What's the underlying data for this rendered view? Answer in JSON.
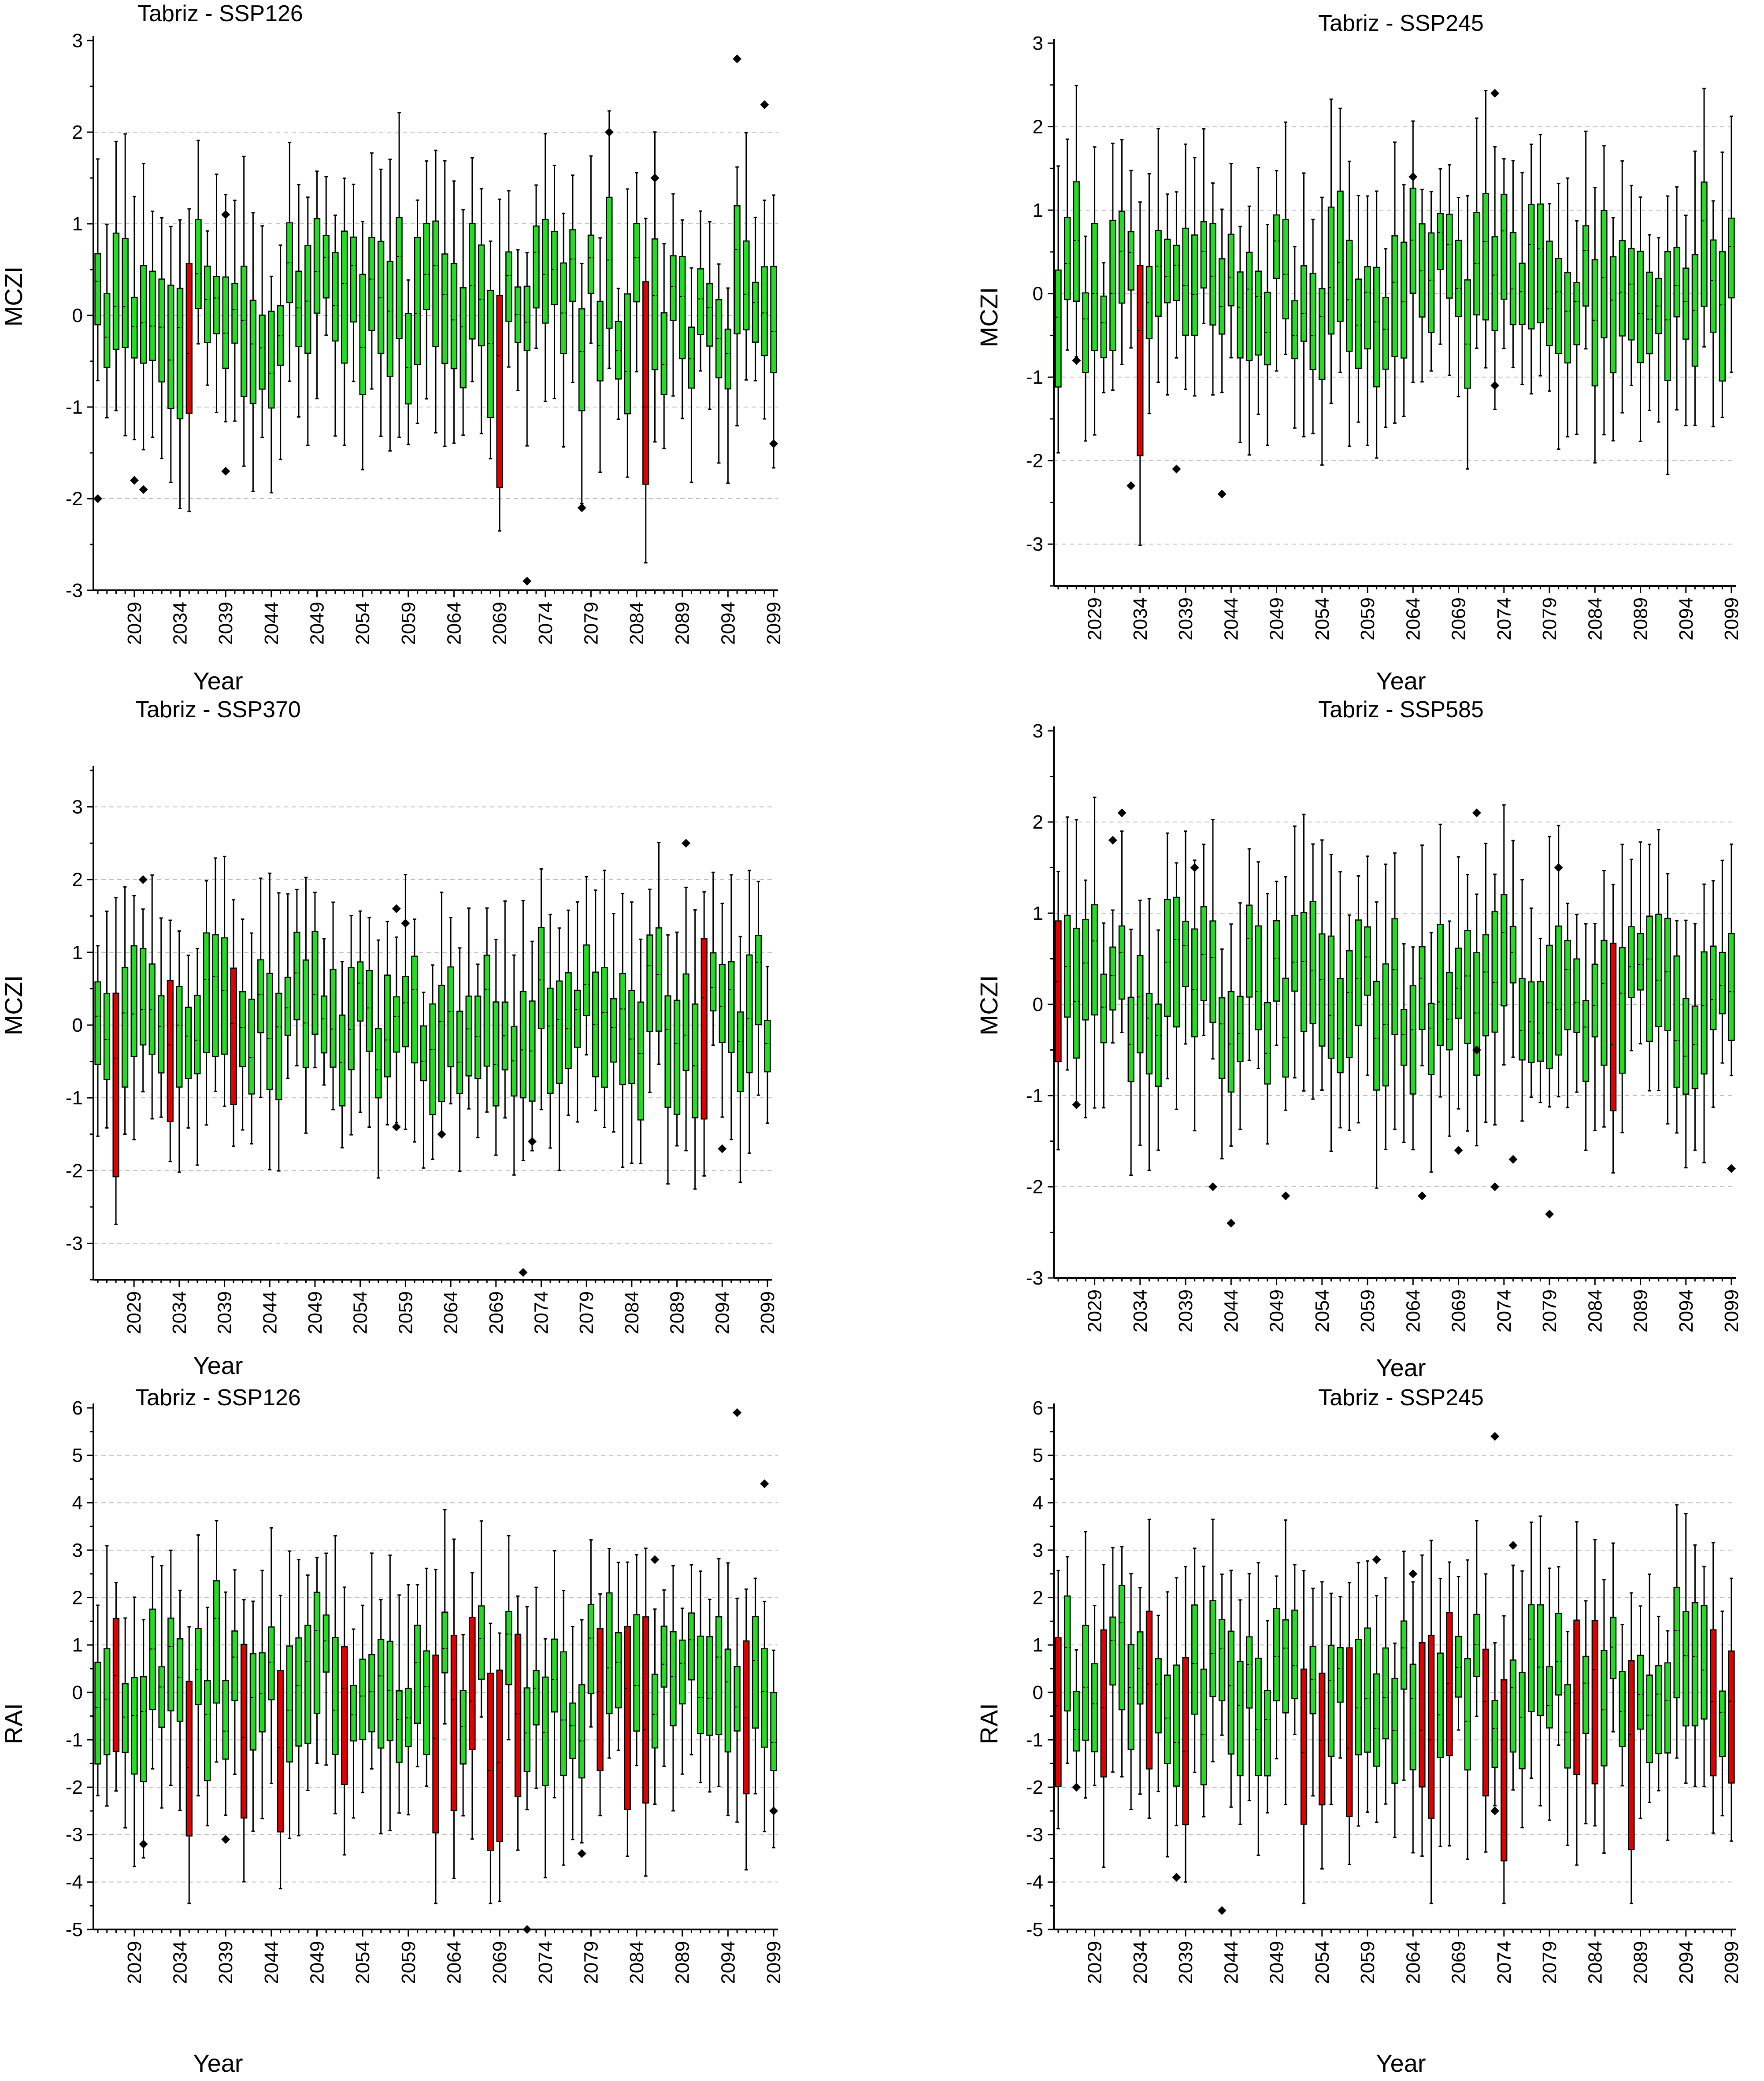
{
  "colors": {
    "wet": "#22dd22",
    "dry": "#e00000",
    "grid": "#bfbfbf"
  },
  "chart_data": [
    {
      "type": "boxplot",
      "title": "Tabriz - SSP126",
      "xlabel": "Year",
      "ylabel": "MCZI",
      "ylim": [
        -3,
        3
      ],
      "yticks": [
        "-3",
        "-2",
        "-1",
        "0",
        "1",
        "2",
        "3"
      ],
      "xticks": [
        "2029",
        "2034",
        "2039",
        "2044",
        "2049",
        "2054",
        "2059",
        "2064",
        "2069",
        "2074",
        "2079",
        "2084",
        "2089",
        "2094",
        "2099"
      ],
      "x_range": [
        2025,
        2099
      ],
      "dry_years": [
        2035,
        2069,
        2085
      ],
      "outliers": [
        [
          2025,
          -2.0
        ],
        [
          2029,
          -1.8
        ],
        [
          2030,
          -1.9
        ],
        [
          2039,
          1.1
        ],
        [
          2039,
          -1.7
        ],
        [
          2072,
          -2.9
        ],
        [
          2078,
          -2.1
        ],
        [
          2081,
          2.0
        ],
        [
          2086,
          1.5
        ],
        [
          2095,
          2.8
        ],
        [
          2098,
          2.3
        ],
        [
          2099,
          -1.4
        ]
      ]
    },
    {
      "type": "boxplot",
      "title": "Tabriz - SSP245",
      "xlabel": "Year",
      "ylabel": "MCZI",
      "ylim": [
        -3.5,
        3
      ],
      "yticks": [
        "-3",
        "-2",
        "-1",
        "0",
        "1",
        "2",
        "3"
      ],
      "xticks": [
        "2029",
        "2034",
        "2039",
        "2044",
        "2049",
        "2054",
        "2059",
        "2064",
        "2069",
        "2074",
        "2079",
        "2084",
        "2089",
        "2094",
        "2099"
      ],
      "x_range": [
        2025,
        2099
      ],
      "dry_years": [
        2034
      ],
      "outliers": [
        [
          2027,
          -0.8
        ],
        [
          2033,
          -2.3
        ],
        [
          2038,
          -2.1
        ],
        [
          2043,
          -2.4
        ],
        [
          2064,
          1.4
        ],
        [
          2073,
          2.4
        ],
        [
          2073,
          -1.1
        ]
      ]
    },
    {
      "type": "boxplot",
      "title": "Tabriz - SSP370",
      "xlabel": "Year",
      "ylabel": "MCZI",
      "ylim": [
        -3.5,
        3.5
      ],
      "yticks": [
        "-3",
        "-2",
        "-1",
        "0",
        "1",
        "2",
        "3"
      ],
      "xticks": [
        "2029",
        "2034",
        "2039",
        "2044",
        "2049",
        "2054",
        "2059",
        "2064",
        "2069",
        "2074",
        "2079",
        "2084",
        "2089",
        "2094",
        "2099"
      ],
      "x_range": [
        2025,
        2099
      ],
      "dry_years": [
        2027,
        2033,
        2040,
        2092
      ],
      "outliers": [
        [
          2030,
          2.0
        ],
        [
          2058,
          1.6
        ],
        [
          2058,
          -1.4
        ],
        [
          2059,
          1.4
        ],
        [
          2063,
          -1.5
        ],
        [
          2072,
          -3.4
        ],
        [
          2073,
          -1.6
        ],
        [
          2090,
          2.5
        ],
        [
          2094,
          -1.7
        ]
      ]
    },
    {
      "type": "boxplot",
      "title": "Tabriz - SSP585",
      "xlabel": "Year",
      "ylabel": "MCZI",
      "ylim": [
        -3,
        3
      ],
      "yticks": [
        "-3",
        "-2",
        "-1",
        "0",
        "1",
        "2",
        "3"
      ],
      "xticks": [
        "2029",
        "2034",
        "2039",
        "2044",
        "2049",
        "2054",
        "2059",
        "2064",
        "2069",
        "2074",
        "2079",
        "2084",
        "2089",
        "2094",
        "2099"
      ],
      "x_range": [
        2025,
        2099
      ],
      "dry_years": [
        2025,
        2086
      ],
      "outliers": [
        [
          2027,
          -1.1
        ],
        [
          2031,
          1.8
        ],
        [
          2032,
          2.1
        ],
        [
          2040,
          1.5
        ],
        [
          2042,
          -2.0
        ],
        [
          2044,
          -2.4
        ],
        [
          2050,
          -2.1
        ],
        [
          2065,
          -2.1
        ],
        [
          2069,
          -1.6
        ],
        [
          2071,
          2.1
        ],
        [
          2071,
          -0.5
        ],
        [
          2073,
          -2.0
        ],
        [
          2075,
          -1.7
        ],
        [
          2079,
          -2.3
        ],
        [
          2080,
          1.5
        ],
        [
          2099,
          -1.8
        ]
      ]
    },
    {
      "type": "boxplot",
      "title": "Tabriz - SSP126",
      "xlabel": "Year",
      "ylabel": "RAI",
      "ylim": [
        -5,
        6
      ],
      "yticks": [
        "-5",
        "-4",
        "-3",
        "-2",
        "-1",
        "0",
        "1",
        "2",
        "3",
        "4",
        "5",
        "6"
      ],
      "xticks": [
        "2029",
        "2034",
        "2039",
        "2044",
        "2049",
        "2054",
        "2059",
        "2064",
        "2069",
        "2074",
        "2079",
        "2084",
        "2089",
        "2094",
        "2099"
      ],
      "x_range": [
        2025,
        2099
      ],
      "dry_years": [
        2027,
        2035,
        2041,
        2045,
        2052,
        2062,
        2064,
        2066,
        2068,
        2069,
        2071,
        2080,
        2083,
        2085,
        2096
      ],
      "outliers": [
        [
          2030,
          -3.2
        ],
        [
          2039,
          -3.1
        ],
        [
          2072,
          -5.0
        ],
        [
          2078,
          -3.4
        ],
        [
          2086,
          2.8
        ],
        [
          2095,
          5.9
        ],
        [
          2098,
          4.4
        ],
        [
          2099,
          -2.5
        ]
      ]
    },
    {
      "type": "boxplot",
      "title": "Tabriz - SSP245",
      "xlabel": "Year",
      "ylabel": "RAI",
      "ylim": [
        -5,
        6
      ],
      "yticks": [
        "-5",
        "-4",
        "-3",
        "-2",
        "-1",
        "0",
        "1",
        "2",
        "3",
        "4",
        "5",
        "6"
      ],
      "xticks": [
        "2029",
        "2034",
        "2039",
        "2044",
        "2049",
        "2054",
        "2059",
        "2064",
        "2069",
        "2074",
        "2079",
        "2084",
        "2089",
        "2094",
        "2099"
      ],
      "x_range": [
        2025,
        2099
      ],
      "dry_years": [
        2025,
        2030,
        2035,
        2039,
        2052,
        2054,
        2057,
        2065,
        2066,
        2068,
        2072,
        2074,
        2082,
        2084,
        2088,
        2097,
        2099
      ],
      "outliers": [
        [
          2027,
          -2.0
        ],
        [
          2038,
          -3.9
        ],
        [
          2043,
          -4.6
        ],
        [
          2060,
          2.8
        ],
        [
          2064,
          2.5
        ],
        [
          2073,
          5.4
        ],
        [
          2073,
          -2.5
        ],
        [
          2075,
          3.1
        ]
      ]
    }
  ]
}
